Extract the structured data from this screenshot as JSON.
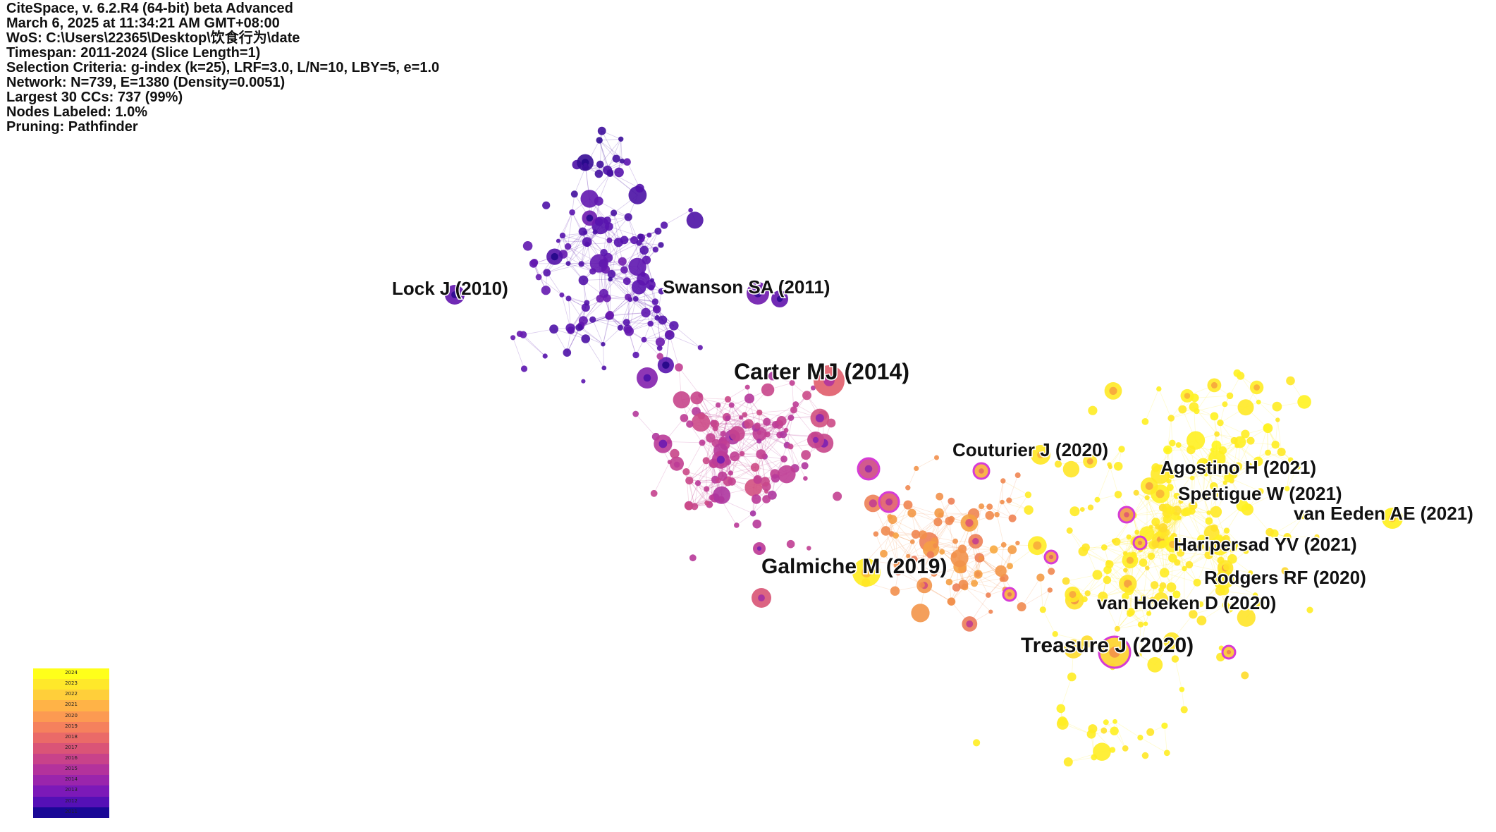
{
  "header": {
    "lines": [
      "CiteSpace, v. 6.2.R4 (64-bit) beta Advanced",
      "March 6, 2025 at 11:34:21 AM GMT+08:00",
      "WoS: C:\\Users\\22365\\Desktop\\饮食行为\\date",
      "Timespan: 2011-2024 (Slice Length=1)",
      "Selection Criteria: g-index (k=25), LRF=3.0, L/N=10, LBY=5, e=1.0",
      "Network: N=739, E=1380 (Density=0.0051)",
      "Largest 30 CCs: 737 (99%)",
      "Nodes Labeled: 1.0%",
      "Pruning: Pathfinder"
    ]
  },
  "network": {
    "labels": [
      {
        "id": "lock",
        "text": "Lock J (2010)"
      },
      {
        "id": "swanson",
        "text": "Swanson SA (2011)"
      },
      {
        "id": "carter",
        "text": "Carter MJ (2014)"
      },
      {
        "id": "couturier",
        "text": "Couturier J (2020)"
      },
      {
        "id": "agostino",
        "text": "Agostino H (2021)"
      },
      {
        "id": "spettigue",
        "text": "Spettigue W (2021)"
      },
      {
        "id": "vaneeden",
        "text": "van Eeden AE (2021)"
      },
      {
        "id": "haripersad",
        "text": "Haripersad YV (2021)"
      },
      {
        "id": "galmiche",
        "text": "Galmiche M (2019)"
      },
      {
        "id": "rodgers",
        "text": "Rodgers RF (2020)"
      },
      {
        "id": "vanhoeken",
        "text": "van Hoeken D (2020)"
      },
      {
        "id": "treasure",
        "text": "Treasure J (2020)"
      }
    ]
  },
  "legend": {
    "years": [
      "2024",
      "2023",
      "2022",
      "2021",
      "2020",
      "2019",
      "2018",
      "2017",
      "2016",
      "2015",
      "2014",
      "2013",
      "2012",
      "2011"
    ],
    "colors": [
      "#ffff1a",
      "#ffe82a",
      "#ffcf3a",
      "#ffb347",
      "#fc9a52",
      "#f5815d",
      "#ea6a68",
      "#da5477",
      "#c8428a",
      "#b3329c",
      "#9a25ac",
      "#7c19b8",
      "#5510b6",
      "#1a0896"
    ]
  }
}
